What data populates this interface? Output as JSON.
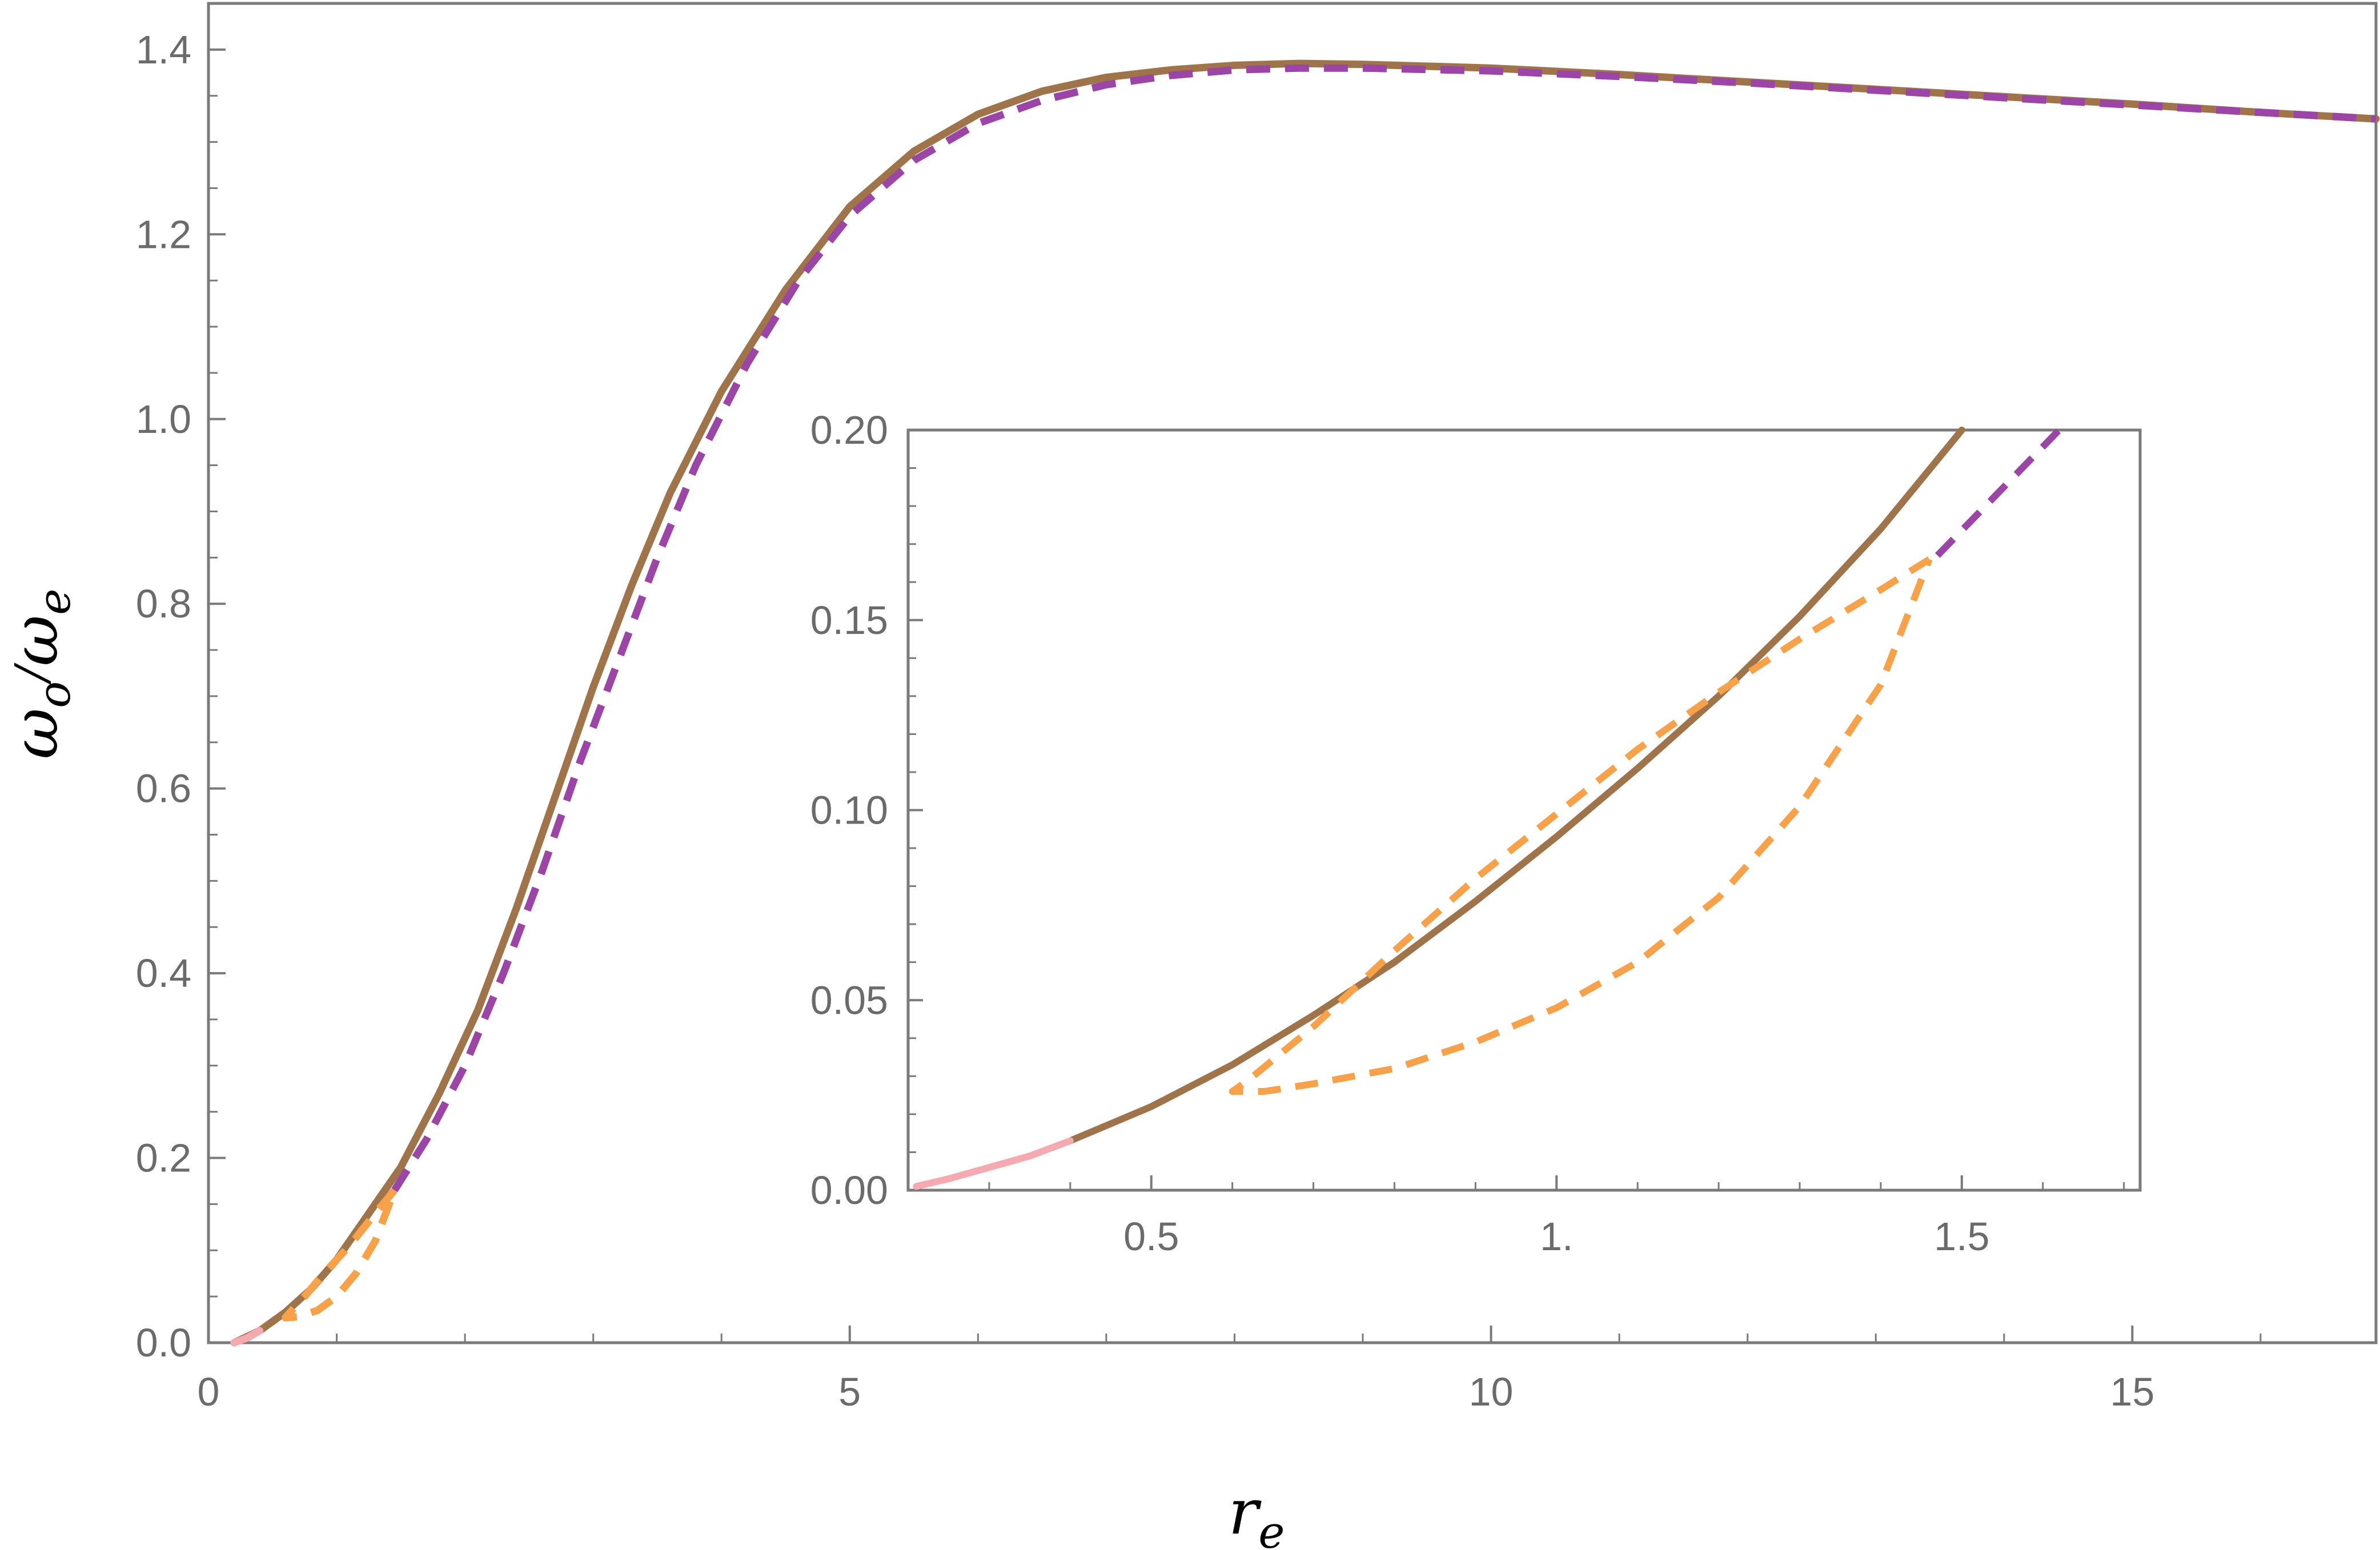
{
  "chart_data": [
    {
      "type": "line",
      "xlabel": "r",
      "xlabel_subscript": "e",
      "ylabel_numerator": "ω",
      "ylabel_numerator_subscript": "o",
      "ylabel_separator": "/",
      "ylabel_denominator": "ω",
      "ylabel_denominator_subscript": "e",
      "xlim": [
        0,
        16.9
      ],
      "ylim": [
        0,
        1.45
      ],
      "x_ticks": [
        "0",
        "5",
        "10",
        "15"
      ],
      "x_tick_values": [
        0,
        5,
        10,
        15
      ],
      "y_ticks": [
        "0.0",
        "0.2",
        "0.4",
        "0.6",
        "0.8",
        "1.0",
        "1.2",
        "1.4"
      ],
      "y_tick_values": [
        0,
        0.2,
        0.4,
        0.6,
        0.8,
        1.0,
        1.2,
        1.4
      ],
      "grid": false,
      "series": [
        {
          "color": "#a0744a",
          "style": "solid",
          "points": [
            [
              0.2,
              0.0
            ],
            [
              0.4,
              0.013
            ],
            [
              0.6,
              0.033
            ],
            [
              0.8,
              0.058
            ],
            [
              1.0,
              0.09
            ],
            [
              1.2,
              0.13
            ],
            [
              1.5,
              0.19
            ],
            [
              1.8,
              0.27
            ],
            [
              2.1,
              0.36
            ],
            [
              2.4,
              0.47
            ],
            [
              2.7,
              0.59
            ],
            [
              3.0,
              0.71
            ],
            [
              3.3,
              0.82
            ],
            [
              3.6,
              0.92
            ],
            [
              4.0,
              1.03
            ],
            [
              4.5,
              1.14
            ],
            [
              5.0,
              1.23
            ],
            [
              5.5,
              1.29
            ],
            [
              6.0,
              1.33
            ],
            [
              6.5,
              1.355
            ],
            [
              7.0,
              1.37
            ],
            [
              7.5,
              1.378
            ],
            [
              8.0,
              1.383
            ],
            [
              8.5,
              1.385
            ],
            [
              9.0,
              1.384
            ],
            [
              10.0,
              1.38
            ],
            [
              11.0,
              1.373
            ],
            [
              12.0,
              1.365
            ],
            [
              13.0,
              1.357
            ],
            [
              14.0,
              1.349
            ],
            [
              15.0,
              1.341
            ],
            [
              16.0,
              1.332
            ],
            [
              16.9,
              1.325
            ]
          ]
        },
        {
          "color": "#9b45a6",
          "style": "dashed",
          "points": [
            [
              1.45,
              0.165
            ],
            [
              1.7,
              0.22
            ],
            [
              2.0,
              0.3
            ],
            [
              2.3,
              0.4
            ],
            [
              2.6,
              0.51
            ],
            [
              2.9,
              0.63
            ],
            [
              3.2,
              0.74
            ],
            [
              3.5,
              0.85
            ],
            [
              3.8,
              0.95
            ],
            [
              4.2,
              1.06
            ],
            [
              4.6,
              1.15
            ],
            [
              5.0,
              1.22
            ],
            [
              5.5,
              1.28
            ],
            [
              6.0,
              1.32
            ],
            [
              6.5,
              1.345
            ],
            [
              7.0,
              1.362
            ],
            [
              7.5,
              1.372
            ],
            [
              8.0,
              1.378
            ],
            [
              8.5,
              1.38
            ],
            [
              9.0,
              1.38
            ],
            [
              10.0,
              1.377
            ],
            [
              11.0,
              1.371
            ],
            [
              12.0,
              1.364
            ],
            [
              13.0,
              1.356
            ],
            [
              14.0,
              1.348
            ],
            [
              15.0,
              1.34
            ],
            [
              16.0,
              1.332
            ],
            [
              16.9,
              1.325
            ]
          ]
        },
        {
          "color": "#f7a24a",
          "style": "dashed",
          "points": [
            [
              1.45,
              0.165
            ],
            [
              1.3,
              0.14
            ],
            [
              1.1,
              0.105
            ],
            [
              0.9,
              0.075
            ],
            [
              0.75,
              0.05
            ],
            [
              0.65,
              0.035
            ],
            [
              0.6,
              0.027
            ],
            [
              0.7,
              0.028
            ],
            [
              0.85,
              0.035
            ],
            [
              1.0,
              0.05
            ],
            [
              1.15,
              0.075
            ],
            [
              1.3,
              0.11
            ],
            [
              1.45,
              0.165
            ]
          ]
        },
        {
          "color": "#f5a9b0",
          "style": "solid",
          "points": [
            [
              0.2,
              0.0
            ],
            [
              0.3,
              0.005
            ],
            [
              0.4,
              0.013
            ]
          ]
        }
      ]
    },
    {
      "type": "line",
      "inset": true,
      "xlim": [
        0.2,
        1.72
      ],
      "ylim": [
        0,
        0.2
      ],
      "x_ticks": [
        "0.5",
        "1.",
        "1.5"
      ],
      "x_tick_values": [
        0.5,
        1.0,
        1.5
      ],
      "y_ticks": [
        "0.00",
        "0.05",
        "0.10",
        "0.15",
        "0.20"
      ],
      "y_tick_values": [
        0,
        0.05,
        0.1,
        0.15,
        0.2
      ],
      "grid": false,
      "series": [
        {
          "color": "#a0744a",
          "style": "solid",
          "points": [
            [
              0.4,
              0.013
            ],
            [
              0.5,
              0.022
            ],
            [
              0.6,
              0.033
            ],
            [
              0.7,
              0.046
            ],
            [
              0.8,
              0.06
            ],
            [
              0.9,
              0.076
            ],
            [
              1.0,
              0.093
            ],
            [
              1.1,
              0.111
            ],
            [
              1.2,
              0.13
            ],
            [
              1.3,
              0.151
            ],
            [
              1.4,
              0.174
            ],
            [
              1.5,
              0.2
            ]
          ]
        },
        {
          "color": "#9b45a6",
          "style": "dashed",
          "points": [
            [
              1.47,
              0.167
            ],
            [
              1.52,
              0.178
            ],
            [
              1.57,
              0.189
            ],
            [
              1.62,
              0.2
            ]
          ]
        },
        {
          "color": "#f7a24a",
          "style": "dashed",
          "points": [
            [
              1.46,
              0.166
            ],
            [
              1.4,
              0.158
            ],
            [
              1.3,
              0.145
            ],
            [
              1.2,
              0.131
            ],
            [
              1.1,
              0.116
            ],
            [
              1.0,
              0.099
            ],
            [
              0.9,
              0.082
            ],
            [
              0.8,
              0.063
            ],
            [
              0.7,
              0.043
            ],
            [
              0.62,
              0.029
            ],
            [
              0.6,
              0.026
            ],
            [
              0.64,
              0.026
            ],
            [
              0.7,
              0.028
            ],
            [
              0.8,
              0.032
            ],
            [
              0.9,
              0.039
            ],
            [
              1.0,
              0.048
            ],
            [
              1.1,
              0.06
            ],
            [
              1.2,
              0.077
            ],
            [
              1.3,
              0.101
            ],
            [
              1.4,
              0.133
            ],
            [
              1.46,
              0.166
            ]
          ]
        },
        {
          "color": "#f5a9b0",
          "style": "solid",
          "points": [
            [
              0.21,
              0.001
            ],
            [
              0.25,
              0.003
            ],
            [
              0.3,
              0.006
            ],
            [
              0.35,
              0.009
            ],
            [
              0.4,
              0.013
            ]
          ]
        }
      ]
    }
  ]
}
